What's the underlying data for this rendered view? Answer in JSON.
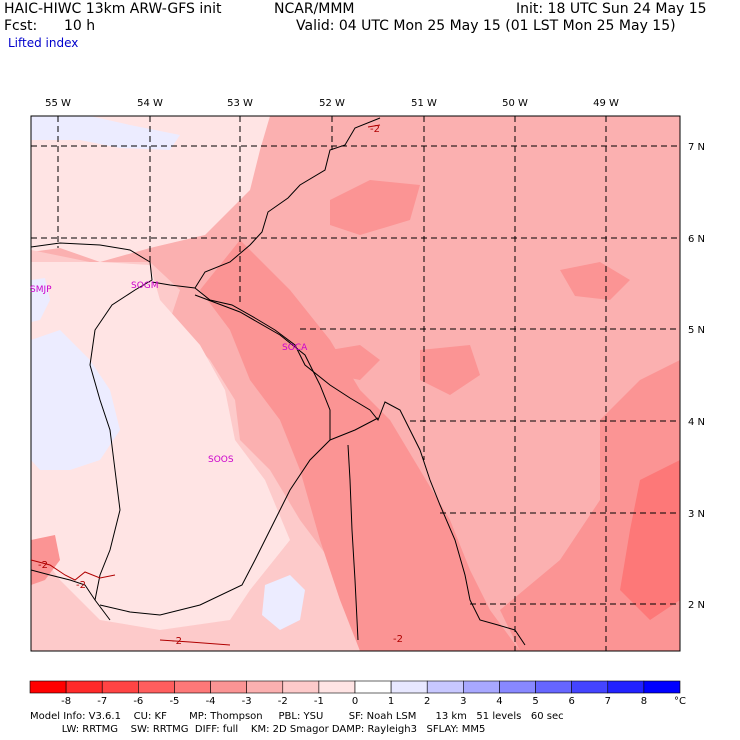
{
  "header": {
    "model_line": "HAIC-HIWC 13km ARW-GFS init",
    "org": "NCAR/MMM",
    "init": "Init: 18 UTC Sun 24 May 15",
    "fcst_label": "Fcst:",
    "fcst_value": "10 h",
    "valid": "Valid: 04 UTC Mon 25 May 15 (01 LST Mon 25 May 15)",
    "field": "Lifted index"
  },
  "map": {
    "lon_labels": [
      "55 W",
      "54 W",
      "53 W",
      "52 W",
      "51 W",
      "50 W",
      "49 W"
    ],
    "lat_labels": [
      "7 N",
      "6 N",
      "5 N",
      "4 N",
      "3 N",
      "2 N"
    ],
    "stations": [
      "SMJP",
      "SOGM",
      "SOCA",
      "SOOS"
    ],
    "contour_labels": [
      "-2",
      "-2",
      "-2",
      "-2",
      "-2"
    ]
  },
  "colorbar": {
    "tick_labels": [
      "-8",
      "-7",
      "-6",
      "-5",
      "-4",
      "-3",
      "-2",
      "-1",
      "0",
      "1",
      "2",
      "3",
      "4",
      "5",
      "6",
      "7",
      "8"
    ],
    "unit": "°C",
    "colors": [
      "#ff0000",
      "#ff2a2a",
      "#ff4444",
      "#ff5e5e",
      "#fd7878",
      "#fb9494",
      "#fbb0b0",
      "#fdcaca",
      "#ffe4e4",
      "#ffffff",
      "#e8e8ff",
      "#c8c8ff",
      "#a8a8ff",
      "#8888ff",
      "#6666ff",
      "#4444ff",
      "#2222ff",
      "#0000ff"
    ]
  },
  "footer": {
    "line1": "Model Info: V3.6.1    CU: KF       MP: Thompson     PBL: YSU        SF: Noah LSM      13 km   51 levels   60 sec",
    "line2": "          LW: RRTMG    SW: RRTMG  DIFF: full    KM: 2D Smagor DAMP: Rayleigh3   SFLAY: MM5"
  }
}
